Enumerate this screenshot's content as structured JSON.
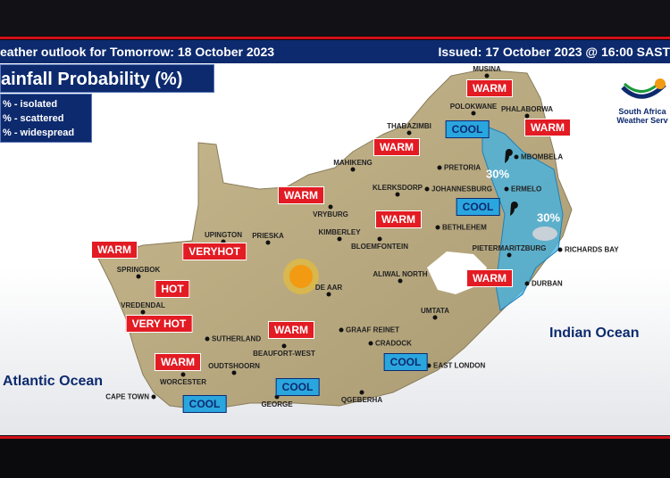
{
  "header": {
    "title": "eather outlook for Tomorrow: 18 October 2023",
    "issued": "Issued: 17 October 2023 @ 16:00   SAST"
  },
  "panel": {
    "title": "ainfall Probability (%)",
    "legend": [
      "% - isolated",
      "% - scattered",
      "% - widespread"
    ]
  },
  "logo": {
    "line1": "South Africa",
    "line2": "Weather Serv"
  },
  "oceans": {
    "atlantic": "Atlantic Ocean",
    "indian": "Indian Ocean"
  },
  "rain": [
    {
      "label": "30%"
    },
    {
      "label": "30%"
    }
  ],
  "colors": {
    "warm": "#e31b23",
    "cool": "#2aa6df",
    "navy": "#0d2a6e",
    "rain": "#3fb3e6"
  },
  "cities": [
    "MUSINA",
    "POLOKWANE",
    "PHALABORWA",
    "THABAZIMBI",
    "MAHIKENG",
    "PRETORIA",
    "MBOMBELA",
    "JOHANNESBURG",
    "KLERKSDORP",
    "VRYBURG",
    "ERMELO",
    "UPINGTON",
    "KIMBERLEY",
    "BLOEMFONTEIN",
    "BETHLEHEM",
    "PIETERMARITZBURG",
    "RICHARDS BAY",
    "SPRINGBOK",
    "PRIESKA",
    "DE AAR",
    "ALIWAL NORTH",
    "DURBAN",
    "UMTATA",
    "VREDENDAL",
    "SUTHERLAND",
    "GRAAF REINET",
    "BEAUFORT-WEST",
    "CRADOCK",
    "WORCESTER",
    "OUDTSHOORN",
    "EAST LONDON",
    "CAPE TOWN",
    "GEORGE",
    "QGEBERHA"
  ],
  "tags": [
    "WARM",
    "WARM",
    "COOL",
    "WARM",
    "WARM",
    "WARM",
    "COOL",
    "WARM",
    "VERYHOT",
    "HOT",
    "VERY HOT",
    "WARM",
    "WARM",
    "WARM",
    "COOL",
    "COOL",
    "COOL"
  ]
}
